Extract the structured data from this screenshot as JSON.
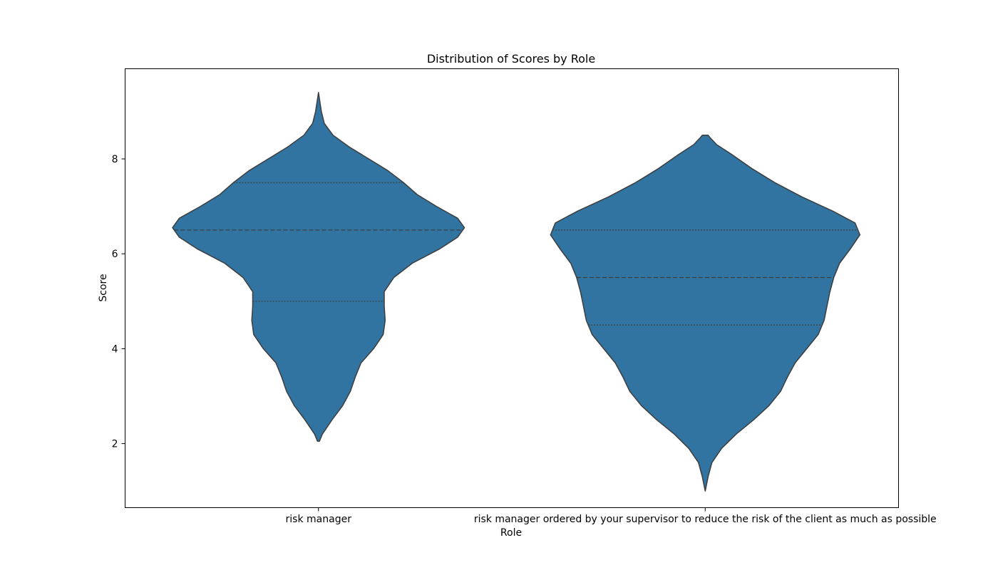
{
  "chart_data": {
    "type": "violin",
    "title": "Distribution of Scores by Role",
    "xlabel": "Role",
    "ylabel": "Score",
    "categories": [
      "risk manager",
      "risk manager ordered by your supervisor to reduce the risk of the client as much as possible"
    ],
    "ylim": [
      0.65,
      9.9
    ],
    "yticks": [
      2,
      4,
      6,
      8
    ],
    "grid": false,
    "color": "#3274a1",
    "edge_color": "#3d3d3d",
    "violins": [
      {
        "category": "risk manager",
        "min": 2.05,
        "max": 9.4,
        "quartiles": {
          "q1": 5.0,
          "median": 6.5,
          "q3": 7.5
        },
        "density_profile": [
          [
            2.05,
            0.01
          ],
          [
            2.2,
            0.04
          ],
          [
            2.5,
            0.14
          ],
          [
            2.8,
            0.25
          ],
          [
            3.1,
            0.33
          ],
          [
            3.4,
            0.38
          ],
          [
            3.7,
            0.44
          ],
          [
            4.0,
            0.57
          ],
          [
            4.3,
            0.67
          ],
          [
            4.6,
            0.69
          ],
          [
            4.9,
            0.68
          ],
          [
            5.2,
            0.68
          ],
          [
            5.5,
            0.78
          ],
          [
            5.8,
            0.97
          ],
          [
            6.1,
            1.25
          ],
          [
            6.35,
            1.44
          ],
          [
            6.55,
            1.51
          ],
          [
            6.75,
            1.44
          ],
          [
            7.0,
            1.22
          ],
          [
            7.25,
            1.02
          ],
          [
            7.5,
            0.88
          ],
          [
            7.75,
            0.72
          ],
          [
            8.0,
            0.52
          ],
          [
            8.25,
            0.32
          ],
          [
            8.5,
            0.15
          ],
          [
            8.75,
            0.06
          ],
          [
            9.0,
            0.03
          ],
          [
            9.4,
            0.0
          ]
        ]
      },
      {
        "category": "risk manager ordered by your supervisor to reduce the risk of the client as much as possible",
        "min": 1.0,
        "max": 8.5,
        "quartiles": {
          "q1": 4.5,
          "median": 5.5,
          "q3": 6.5
        },
        "density_profile": [
          [
            1.0,
            0.0
          ],
          [
            1.3,
            0.03
          ],
          [
            1.6,
            0.07
          ],
          [
            1.9,
            0.17
          ],
          [
            2.2,
            0.32
          ],
          [
            2.5,
            0.5
          ],
          [
            2.8,
            0.66
          ],
          [
            3.1,
            0.78
          ],
          [
            3.4,
            0.85
          ],
          [
            3.7,
            0.93
          ],
          [
            4.0,
            1.05
          ],
          [
            4.3,
            1.17
          ],
          [
            4.6,
            1.23
          ],
          [
            4.9,
            1.26
          ],
          [
            5.2,
            1.29
          ],
          [
            5.5,
            1.33
          ],
          [
            5.8,
            1.39
          ],
          [
            6.1,
            1.5
          ],
          [
            6.4,
            1.6
          ],
          [
            6.65,
            1.55
          ],
          [
            6.9,
            1.32
          ],
          [
            7.2,
            1.0
          ],
          [
            7.5,
            0.72
          ],
          [
            7.8,
            0.48
          ],
          [
            8.1,
            0.27
          ],
          [
            8.3,
            0.12
          ],
          [
            8.45,
            0.05
          ],
          [
            8.5,
            0.03
          ]
        ]
      }
    ]
  }
}
